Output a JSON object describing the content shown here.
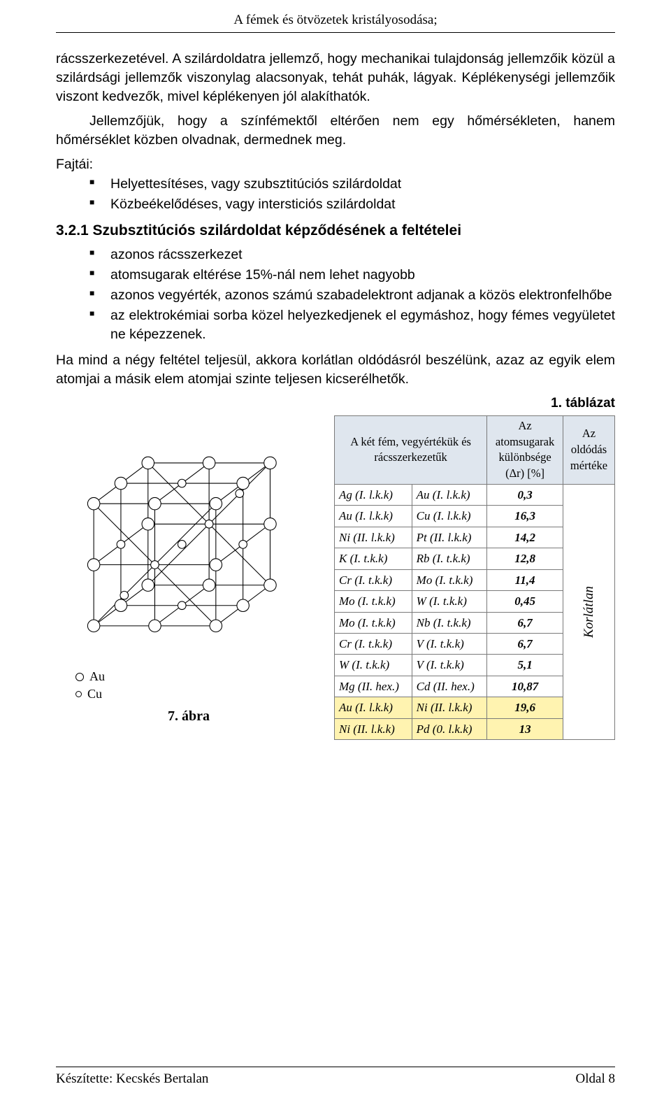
{
  "header": {
    "running": "A fémek és ötvözetek kristályosodása;"
  },
  "paragraphs": {
    "p1": "rácsszerkezetével. A szilárdoldatra jellemző, hogy mechanikai tulajdonság jellemzőik közül a szilárdsági jellemzők viszonylag alacsonyak, tehát puhák, lágyak. Képlékenységi jellemzőik viszont kedvezők, mivel képlékenyen jól alakíthatók.",
    "p2": "Jellemzőjük, hogy a színfémektől eltérően nem egy hőmérsékleten, hanem hőmérséklet közben olvadnak, dermednek meg.",
    "fajtai_label": "Fajtái:",
    "fajtai": [
      "Helyettesítéses, vagy szubsztitúciós szilárdoldat",
      "Közbeékelődéses, vagy intersticiós szilárdoldat"
    ],
    "h3": "3.2.1  Szubsztitúciós szilárdoldat képződésének a feltételei",
    "cond": [
      "azonos rácsszerkezet",
      "atomsugarak eltérése 15%-nál nem lehet nagyobb",
      "azonos vegyérték, azonos számú szabadelektront adjanak a közös elektronfelhőbe",
      "az elektrokémiai sorba közel helyezkedjenek el egymáshoz, hogy fémes vegyületet ne képezzenek."
    ],
    "p3": "Ha mind a négy feltétel teljesül, akkora korlátlan oldódásról beszélünk, azaz az egyik elem atomjai a másik elem atomjai szinte teljesen kicserélhetők."
  },
  "table": {
    "caption": "1. táblázat",
    "headers": {
      "c1": "A két fém, vegyértékük és rácsszerkezetűk",
      "c2": "Az atomsugarak különbsége (Δr) [%]",
      "c3": "Az oldódás mértéke"
    },
    "rows": [
      {
        "a": "Ag (I. l.k.k)",
        "b": "Au (I. l.k.k)",
        "v": "0,3",
        "hl": false
      },
      {
        "a": "Au (I. l.k.k)",
        "b": "Cu (I. l.k.k)",
        "v": "16,3",
        "hl": false
      },
      {
        "a": "Ni (II. l.k.k)",
        "b": "Pt (II. l.k.k)",
        "v": "14,2",
        "hl": false
      },
      {
        "a": "K (I. t.k.k)",
        "b": "Rb (I. t.k.k)",
        "v": "12,8",
        "hl": false
      },
      {
        "a": "Cr (I. t.k.k)",
        "b": "Mo (I. t.k.k)",
        "v": "11,4",
        "hl": false
      },
      {
        "a": "Mo (I. t.k.k)",
        "b": "W (I. t.k.k)",
        "v": "0,45",
        "hl": false
      },
      {
        "a": "Mo (I. t.k.k)",
        "b": "Nb (I. t.k.k)",
        "v": "6,7",
        "hl": false
      },
      {
        "a": "Cr (I. t.k.k)",
        "b": "V (I. t.k.k)",
        "v": "6,7",
        "hl": false
      },
      {
        "a": "W (I. t.k.k)",
        "b": "V (I. t.k.k)",
        "v": "5,1",
        "hl": false
      },
      {
        "a": "Mg (II. hex.)",
        "b": "Cd (II. hex.)",
        "v": "10,87",
        "hl": false
      },
      {
        "a": "Au (I. l.k.k)",
        "b": "Ni (II. l.k.k)",
        "v": "19,6",
        "hl": true
      },
      {
        "a": "Ni (II. l.k.k)",
        "b": "Pd (0. l.k.k)",
        "v": "13",
        "hl": true
      }
    ],
    "merged_label": "Korlátlan",
    "colors": {
      "header_bg": "#dfe6ee",
      "border": "#7a7a7a",
      "highlight_bg": "#fff3b0"
    }
  },
  "figure": {
    "caption": "7. ábra",
    "legend": {
      "au": "Au",
      "cu": "Cu"
    }
  },
  "footer": {
    "left": "Készítette: Kecskés Bertalan",
    "right": "Oldal 8"
  }
}
